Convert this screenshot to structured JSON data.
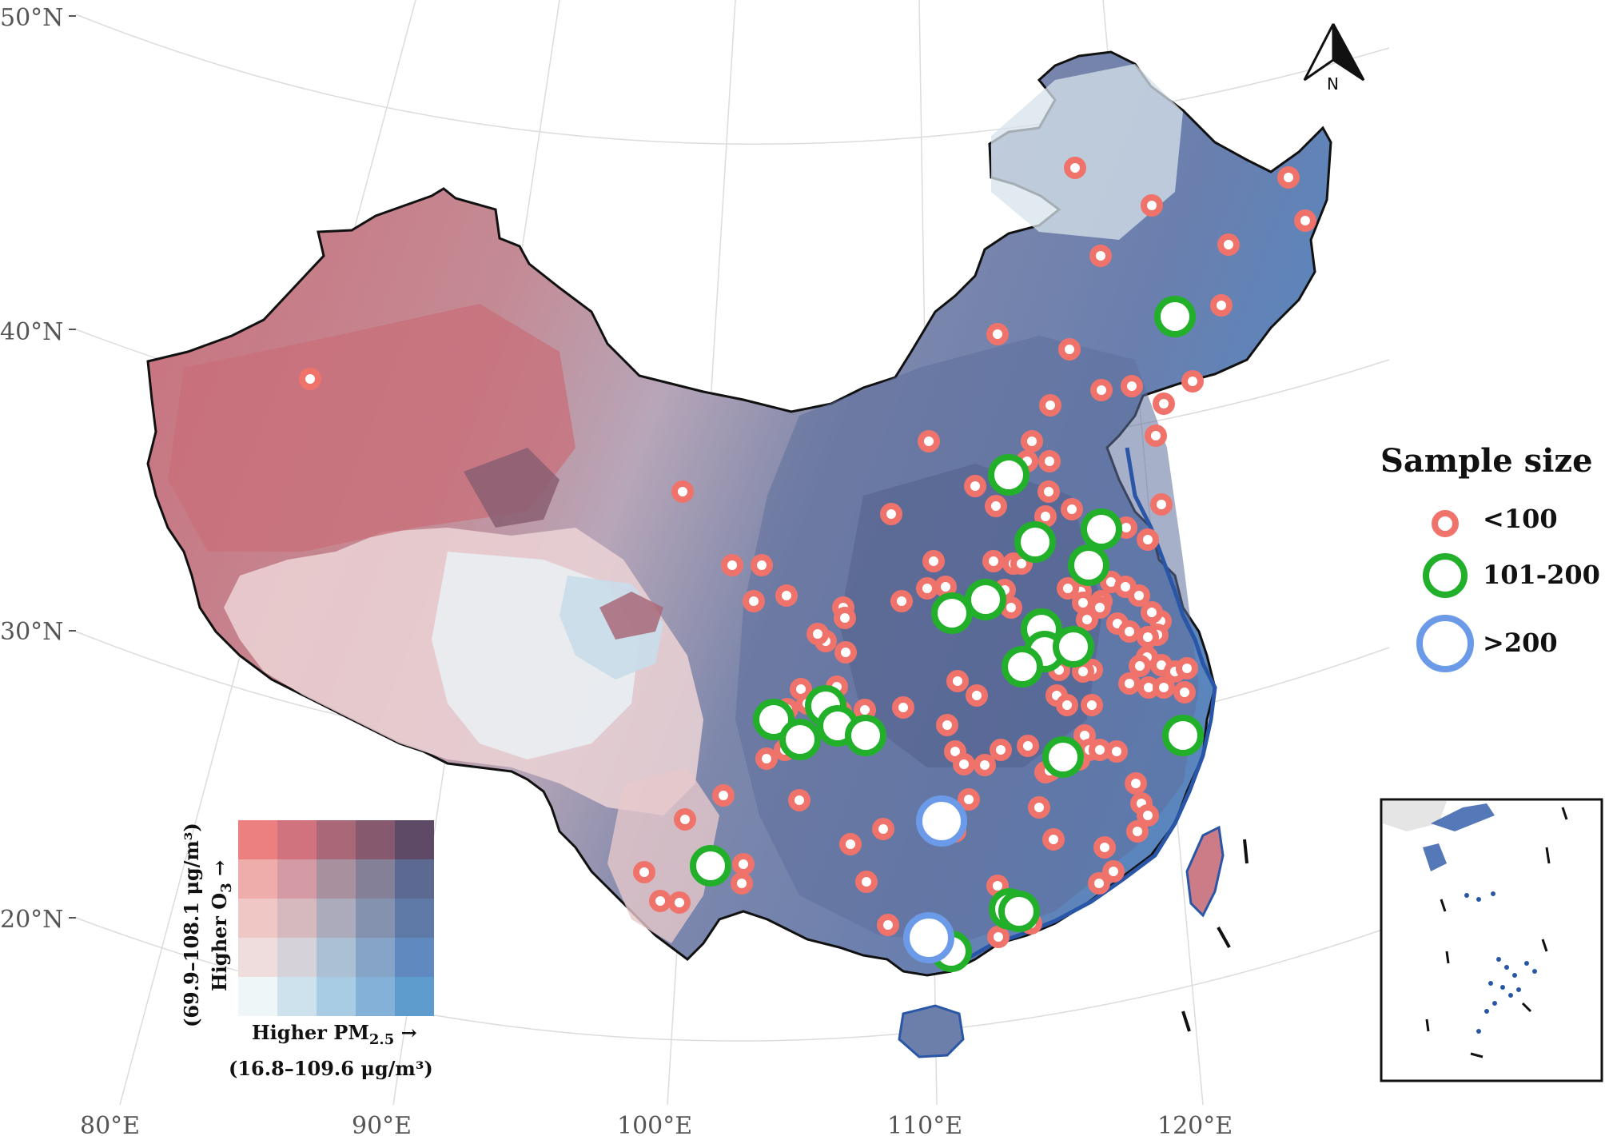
{
  "map": {
    "lat_labels": [
      "50°N",
      "40°N",
      "30°N",
      "20°N"
    ],
    "lon_labels": [
      "80°E",
      "90°E",
      "100°E",
      "110°E",
      "120°E"
    ],
    "north_arrow_label": "N"
  },
  "legend": {
    "title": "Sample size",
    "items": [
      {
        "label": "<100",
        "color": "#f0736b"
      },
      {
        "label": "101-200",
        "color": "#22b02a"
      },
      {
        "label": ">200",
        "color": "#6b9be8"
      }
    ]
  },
  "bivariate_legend": {
    "x_label": "Higher PM",
    "x_label_sub": "2.5",
    "x_arrow": "→",
    "x_range": "(16.8–109.6 μg/m³)",
    "y_label": "Higher O",
    "y_label_sub": "3",
    "y_arrow": "→",
    "y_range": "(69.9–108.1 μg/m³)",
    "colors": [
      [
        "#ec8080",
        "#d0737e",
        "#a96878",
        "#86596e",
        "#5e4a67"
      ],
      [
        "#eeacaa",
        "#d49ba4",
        "#a9909e",
        "#848097",
        "#5c6a92"
      ],
      [
        "#efc8c6",
        "#d6b9bf",
        "#ababbb",
        "#8492b0",
        "#5f7aa6"
      ],
      [
        "#efdcdc",
        "#d6d2d9",
        "#acc0d3",
        "#86a4c8",
        "#6089c0"
      ],
      [
        "#eef6f8",
        "#cde2ed",
        "#a8cce3",
        "#84b1d8",
        "#5e9ccd"
      ]
    ]
  }
}
